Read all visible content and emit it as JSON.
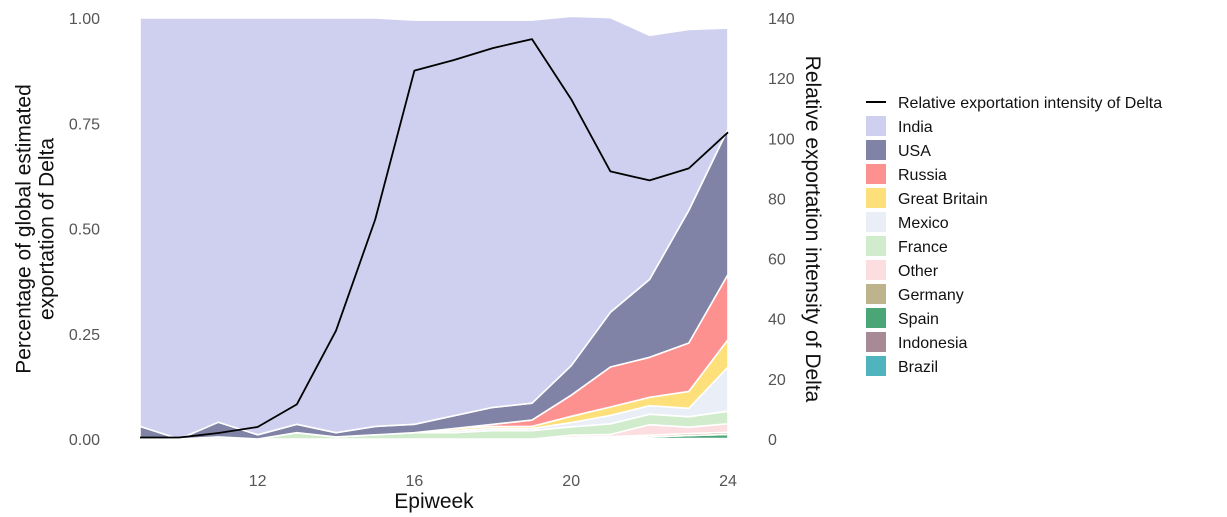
{
  "chart_data": {
    "type": "area",
    "xlabel": "Epiweek",
    "ylabel_left": "Percentage of global estimated exportation of Delta",
    "ylabel_right": "Relative exportation intensity of Delta",
    "x": [
      9,
      10,
      11,
      12,
      13,
      14,
      15,
      16,
      17,
      18,
      19,
      20,
      21,
      22,
      23,
      24
    ],
    "xlim": [
      9,
      24
    ],
    "x_ticks": [
      "12",
      "16",
      "20",
      "24"
    ],
    "ylim_left": [
      0,
      1
    ],
    "y_ticks_left": [
      "0.00",
      "0.25",
      "0.50",
      "0.75",
      "1.00"
    ],
    "ylim_right": [
      0,
      140
    ],
    "y_ticks_right": [
      "0",
      "20",
      "40",
      "60",
      "80",
      "100",
      "120",
      "140"
    ],
    "stack_order_bottom_to_top": [
      "Brazil",
      "Indonesia",
      "Spain",
      "Germany",
      "Other",
      "France",
      "Mexico",
      "Great Britain",
      "Russia",
      "USA",
      "India"
    ],
    "series": [
      {
        "name": "India",
        "color": "#cfd0ef",
        "values": [
          0.97,
          1.0,
          0.96,
          0.99,
          0.965,
          0.985,
          0.97,
          0.96,
          0.94,
          0.92,
          0.91,
          0.83,
          0.7,
          0.58,
          0.43,
          0.24
        ]
      },
      {
        "name": "USA",
        "color": "#8083a6",
        "values": [
          0.03,
          0.0,
          0.035,
          0.01,
          0.02,
          0.01,
          0.02,
          0.02,
          0.03,
          0.04,
          0.04,
          0.07,
          0.13,
          0.185,
          0.315,
          0.345
        ]
      },
      {
        "name": "Russia",
        "color": "#fc9190",
        "values": [
          0,
          0,
          0,
          0,
          0,
          0,
          0,
          0,
          0,
          0.005,
          0.015,
          0.05,
          0.095,
          0.095,
          0.115,
          0.155
        ]
      },
      {
        "name": "Great Britain",
        "color": "#fde07a",
        "values": [
          0,
          0,
          0,
          0,
          0,
          0,
          0,
          0,
          0.005,
          0.005,
          0.005,
          0.015,
          0.02,
          0.02,
          0.04,
          0.065
        ]
      },
      {
        "name": "Mexico",
        "color": "#eaeef6",
        "values": [
          0,
          0,
          0,
          0,
          0,
          0,
          0,
          0,
          0.005,
          0.005,
          0.005,
          0.01,
          0.02,
          0.02,
          0.02,
          0.105
        ]
      },
      {
        "name": "France",
        "color": "#d1eccc",
        "values": [
          0,
          0,
          0.005,
          0,
          0.015,
          0.005,
          0.01,
          0.015,
          0.015,
          0.02,
          0.02,
          0.02,
          0.025,
          0.025,
          0.025,
          0.03
        ]
      },
      {
        "name": "Other",
        "color": "#fcdde0",
        "values": [
          0,
          0,
          0,
          0,
          0,
          0,
          0,
          0,
          0,
          0,
          0,
          0.005,
          0.005,
          0.025,
          0.015,
          0.02
        ]
      },
      {
        "name": "Germany",
        "color": "#bdb48e",
        "values": [
          0,
          0,
          0,
          0,
          0,
          0,
          0,
          0,
          0,
          0,
          0,
          0,
          0.003,
          0.004,
          0.005,
          0.005
        ]
      },
      {
        "name": "Spain",
        "color": "#4aa577",
        "values": [
          0,
          0,
          0,
          0,
          0,
          0,
          0,
          0,
          0,
          0,
          0,
          0,
          0.002,
          0.004,
          0.007,
          0.01
        ]
      },
      {
        "name": "Indonesia",
        "color": "#a88a96",
        "values": [
          0,
          0,
          0,
          0,
          0,
          0,
          0,
          0,
          0,
          0,
          0,
          0,
          0.001,
          0.001,
          0.001,
          0.001
        ]
      },
      {
        "name": "Brazil",
        "color": "#4fb4be",
        "values": [
          0,
          0,
          0,
          0,
          0,
          0,
          0,
          0,
          0,
          0,
          0,
          0.004,
          0,
          0,
          0,
          0
        ]
      }
    ],
    "line": {
      "name": "Relative exportation intensity of Delta",
      "color": "#000000",
      "axis": "right",
      "values": [
        0.5,
        0.5,
        2,
        4,
        11.5,
        36,
        73,
        122.5,
        126,
        130,
        133,
        113,
        89,
        86,
        90,
        102
      ]
    },
    "legend_position": "right",
    "legend": [
      {
        "label": "Relative exportation intensity of Delta",
        "kind": "line",
        "color": "#000000"
      },
      {
        "label": "India",
        "kind": "fill",
        "color": "#cfd0ef"
      },
      {
        "label": "USA",
        "kind": "fill",
        "color": "#8083a6"
      },
      {
        "label": "Russia",
        "kind": "fill",
        "color": "#fc9190"
      },
      {
        "label": "Great Britain",
        "kind": "fill",
        "color": "#fde07a"
      },
      {
        "label": "Mexico",
        "kind": "fill",
        "color": "#eaeef6"
      },
      {
        "label": "France",
        "kind": "fill",
        "color": "#d1eccc"
      },
      {
        "label": "Other",
        "kind": "fill",
        "color": "#fcdde0"
      },
      {
        "label": "Germany",
        "kind": "fill",
        "color": "#bdb48e"
      },
      {
        "label": "Spain",
        "kind": "fill",
        "color": "#4aa577"
      },
      {
        "label": "Indonesia",
        "kind": "fill",
        "color": "#a88a96"
      },
      {
        "label": "Brazil",
        "kind": "fill",
        "color": "#4fb4be"
      }
    ],
    "grid": false
  }
}
